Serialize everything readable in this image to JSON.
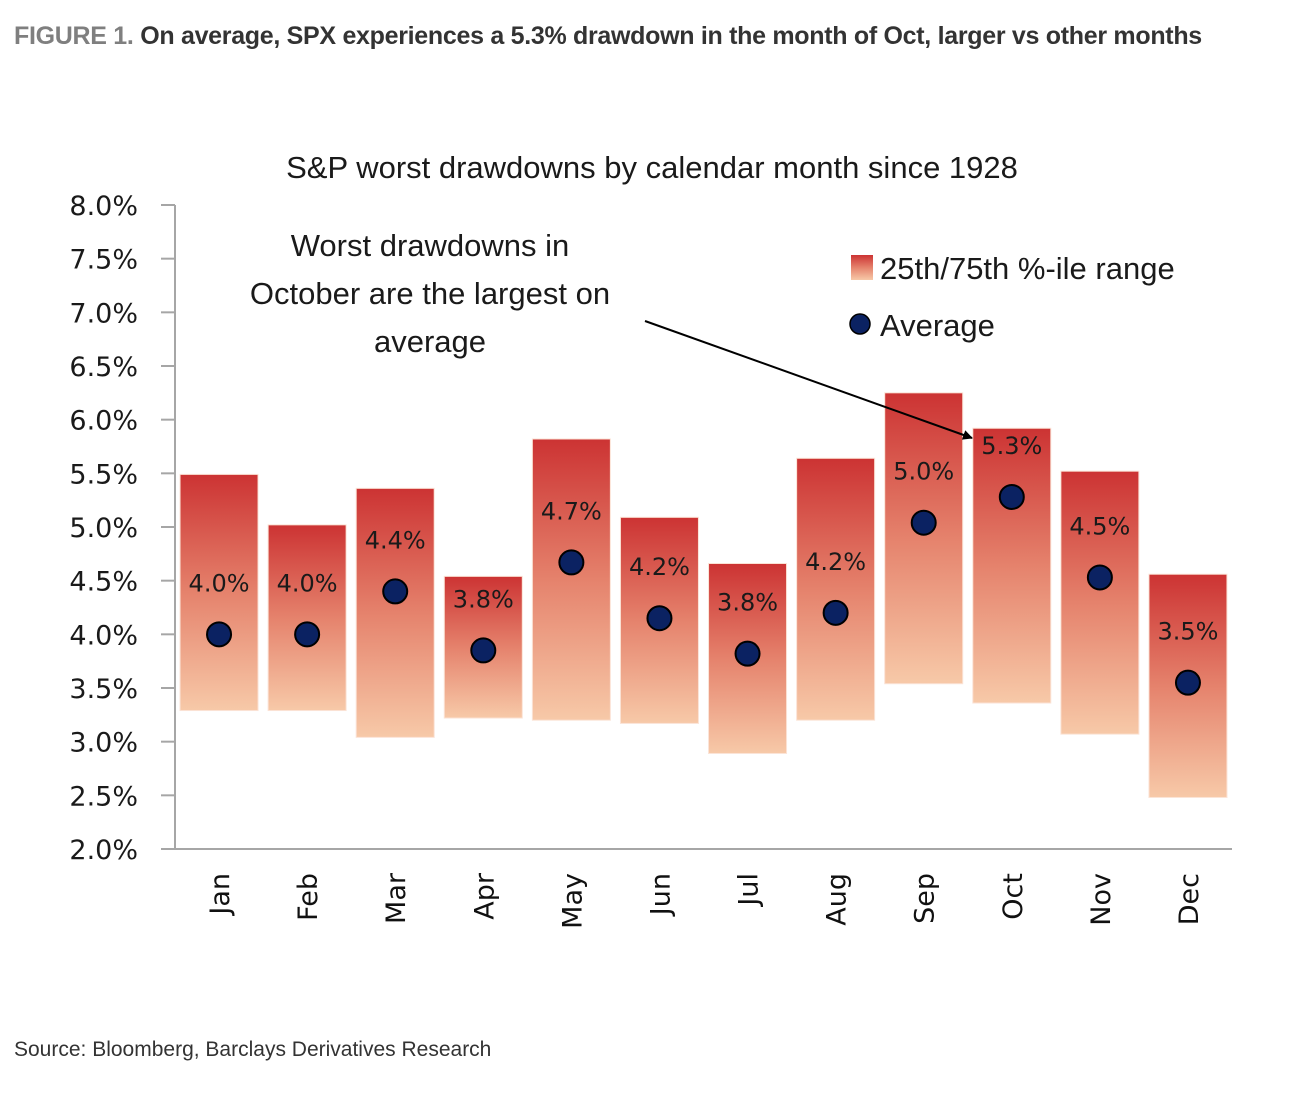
{
  "figure": {
    "number_label": "FIGURE 1.",
    "caption": "On average, SPX experiences a 5.3% drawdown in the month of Oct, larger vs other months",
    "source": "Source: Bloomberg, Barclays Derivatives Research"
  },
  "colors": {
    "range_top": "#cc3333",
    "range_bottom": "#f7c9a8",
    "average_fill": "#0b2262",
    "axis": "#a6a6a6",
    "caption_prefix": "#7f7f7f",
    "caption_text": "#333333"
  },
  "chart_data": {
    "type": "bar",
    "subtype": "floating-range-with-markers",
    "title": "S&P worst drawdowns by calendar month since 1928",
    "xlabel": "",
    "ylabel": "",
    "ylim": [
      2.0,
      8.0
    ],
    "ytick_step": 0.5,
    "ytick_labels": [
      "2.0%",
      "2.5%",
      "3.0%",
      "3.5%",
      "4.0%",
      "4.5%",
      "5.0%",
      "5.5%",
      "6.0%",
      "6.5%",
      "7.0%",
      "7.5%",
      "8.0%"
    ],
    "grid": false,
    "categories": [
      "Jan",
      "Feb",
      "Mar",
      "Apr",
      "May",
      "Jun",
      "Jul",
      "Aug",
      "Sep",
      "Oct",
      "Nov",
      "Dec"
    ],
    "series": [
      {
        "name": "25th/75th %-ile range",
        "kind": "range",
        "low": [
          3.29,
          3.29,
          3.04,
          3.22,
          3.2,
          3.17,
          2.89,
          3.2,
          3.54,
          3.36,
          3.07,
          2.48
        ],
        "high": [
          5.49,
          5.02,
          5.36,
          4.54,
          5.82,
          5.09,
          4.66,
          5.64,
          6.25,
          5.92,
          5.52,
          4.56
        ]
      },
      {
        "name": "Average",
        "kind": "marker",
        "values": [
          4.0,
          4.0,
          4.4,
          3.85,
          4.67,
          4.15,
          3.82,
          4.2,
          5.04,
          5.28,
          4.53,
          3.55
        ],
        "labels": [
          "4.0%",
          "4.0%",
          "4.4%",
          "3.8%",
          "4.7%",
          "4.2%",
          "3.8%",
          "4.2%",
          "5.0%",
          "5.3%",
          "4.5%",
          "3.5%"
        ]
      }
    ],
    "legend": {
      "position": "top-right",
      "entries": [
        "25th/75th %-ile range",
        "Average"
      ]
    },
    "annotation": {
      "lines": [
        "Worst drawdowns in",
        "October are the largest on",
        "average"
      ],
      "points_to": "Oct"
    }
  }
}
